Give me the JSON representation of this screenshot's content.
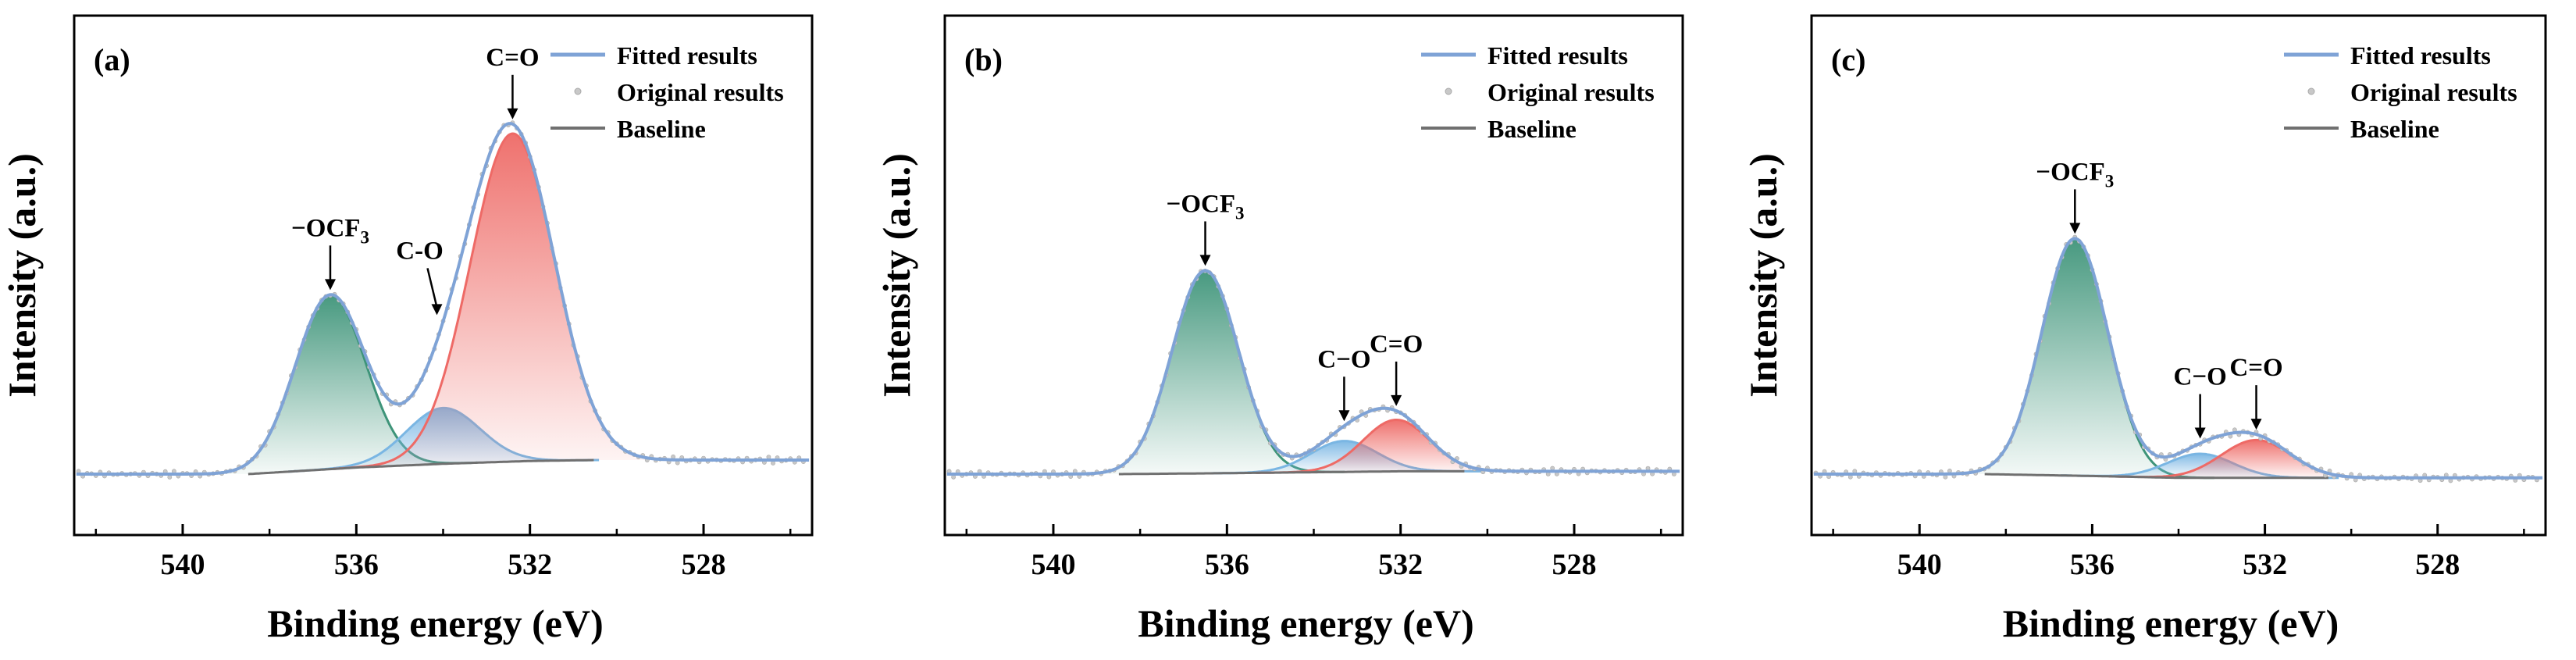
{
  "chart_data": [
    {
      "type": "line",
      "panel_label": "(a)",
      "xlabel": "Binding energy (eV)",
      "ylabel": "Intensity (a.u.)",
      "xlim": [
        542.5,
        525.5
      ],
      "ylim": [
        0,
        1.1
      ],
      "xticks": [
        "540",
        "536",
        "532",
        "528"
      ],
      "xtick_values": [
        540,
        536,
        532,
        528
      ],
      "legend": [
        "Fitted results",
        "Original results",
        "Baseline"
      ],
      "legend_position": "top-right",
      "baseline": {
        "x": [
          538.5,
          536,
          534,
          532,
          530.5
        ],
        "y": [
          0.0,
          0.035,
          0.055,
          0.07,
          0.075
        ]
      },
      "baseline_level": 0.0,
      "peaks": [
        {
          "name": "−OCF",
          "subscript": "3",
          "center": 536.6,
          "height": 0.53,
          "fwhm": 1.9,
          "color": "#3e9479",
          "annotation": "−OCF3"
        },
        {
          "name": "C-O",
          "subscript": "",
          "center": 534.0,
          "height": 0.17,
          "fwhm": 2.0,
          "color": "#7ab6e3",
          "annotation": "C-O"
        },
        {
          "name": "C=O",
          "subscript": "",
          "center": 532.4,
          "height": 1.0,
          "fwhm": 2.3,
          "color": "#ee6a66",
          "annotation": "C=O"
        }
      ]
    },
    {
      "type": "line",
      "panel_label": "(b)",
      "xlabel": "Binding energy (eV)",
      "ylabel": "Intensity (a.u.)",
      "xlim": [
        542.5,
        525.5
      ],
      "ylim": [
        0,
        1.1
      ],
      "xticks": [
        "540",
        "536",
        "532",
        "528"
      ],
      "xtick_values": [
        540,
        536,
        532,
        528
      ],
      "legend": [
        "Fitted results",
        "Original results",
        "Baseline"
      ],
      "legend_position": "top-right",
      "baseline": {
        "x": [
          538.5,
          536,
          534,
          532,
          530.5
        ],
        "y": [
          0.0,
          0.005,
          0.01,
          0.015,
          0.015
        ]
      },
      "baseline_level": 0.0,
      "peaks": [
        {
          "name": "−OCF",
          "subscript": "3",
          "center": 536.5,
          "height": 0.59,
          "fwhm": 1.8,
          "color": "#3e9479",
          "annotation": "−OCF3"
        },
        {
          "name": "C−O",
          "subscript": "",
          "center": 533.3,
          "height": 0.09,
          "fwhm": 1.8,
          "color": "#7ab6e3",
          "annotation": "C−O"
        },
        {
          "name": "C=O",
          "subscript": "",
          "center": 532.1,
          "height": 0.15,
          "fwhm": 1.8,
          "color": "#ee6a66",
          "annotation": "C=O"
        }
      ]
    },
    {
      "type": "line",
      "panel_label": "(c)",
      "xlabel": "Binding energy (eV)",
      "ylabel": "Intensity (a.u.)",
      "xlim": [
        542.5,
        525.5
      ],
      "ylim": [
        0,
        1.1
      ],
      "xticks": [
        "540",
        "536",
        "532",
        "528"
      ],
      "xtick_values": [
        540,
        536,
        532,
        528
      ],
      "legend": [
        "Fitted results",
        "Original results",
        "Baseline"
      ],
      "legend_position": "top-right",
      "baseline": {
        "x": [
          538.5,
          536,
          534,
          532,
          530.5
        ],
        "y": [
          0.0,
          -0.01,
          -0.02,
          -0.02,
          -0.02
        ]
      },
      "baseline_level": 0.0,
      "peaks": [
        {
          "name": "−OCF",
          "subscript": "3",
          "center": 536.4,
          "height": 0.69,
          "fwhm": 1.8,
          "color": "#3e9479",
          "annotation": "−OCF3"
        },
        {
          "name": "C−O",
          "subscript": "",
          "center": 533.5,
          "height": 0.07,
          "fwhm": 1.8,
          "color": "#7ab6e3",
          "annotation": "C−O"
        },
        {
          "name": "C=O",
          "subscript": "",
          "center": 532.2,
          "height": 0.11,
          "fwhm": 1.9,
          "color": "#ee6a66",
          "annotation": "C=O"
        }
      ]
    }
  ],
  "colors": {
    "fitted": "#7fa3d6",
    "original": "#c8c8c8",
    "baseline": "#707070"
  }
}
